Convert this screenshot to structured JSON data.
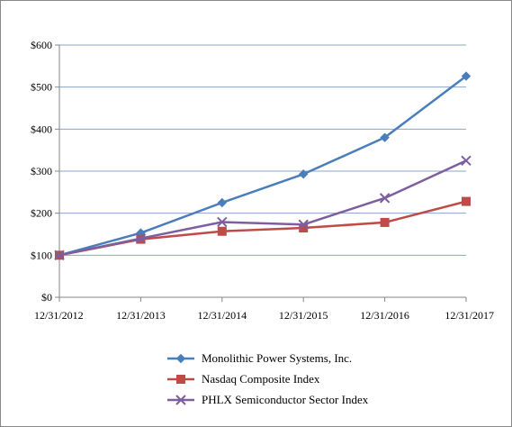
{
  "chart_data": {
    "type": "line",
    "title": "",
    "xlabel": "",
    "ylabel": "",
    "categories": [
      "12/31/2012",
      "12/31/2013",
      "12/31/2014",
      "12/31/2015",
      "12/31/2016",
      "12/31/2017"
    ],
    "ylim": [
      0,
      600
    ],
    "yticks": [
      0,
      100,
      200,
      300,
      400,
      500,
      600
    ],
    "ytick_labels": [
      "$0",
      "$100",
      "$200",
      "$300",
      "$400",
      "$500",
      "$600"
    ],
    "grid": true,
    "legend_position": "bottom",
    "series": [
      {
        "name": "Monolithic Power Systems, Inc.",
        "values": [
          100,
          153,
          225,
          293,
          380,
          526
        ],
        "color": "#4a7ebb",
        "marker": "diamond"
      },
      {
        "name": "Nasdaq Composite Index",
        "values": [
          100,
          138,
          157,
          165,
          178,
          228
        ],
        "color": "#be4b48",
        "marker": "square"
      },
      {
        "name": "PHLX Semiconductor Sector Index",
        "values": [
          100,
          140,
          179,
          173,
          236,
          325
        ],
        "color": "#7d5fa0",
        "marker": "x"
      }
    ]
  }
}
